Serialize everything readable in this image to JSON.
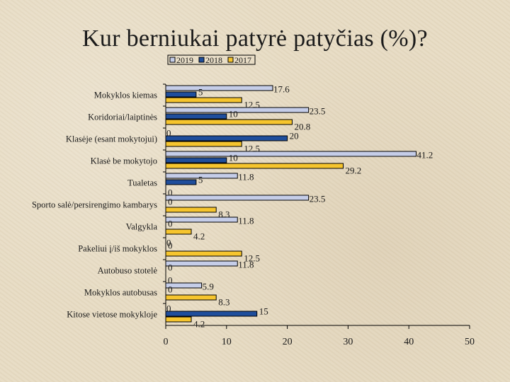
{
  "title": "Kur berniukai patyrė patyčias (%)?",
  "chart_data": {
    "type": "bar",
    "orientation": "horizontal",
    "title": "Kur berniukai patyrė patyčias (%)?",
    "xlabel": "",
    "ylabel": "",
    "xlim": [
      0,
      50
    ],
    "xticks": [
      0,
      10,
      20,
      30,
      40,
      50
    ],
    "legend_position": "top-center",
    "grid": false,
    "categories": [
      "Mokyklos kiemas",
      "Koridoriai/laiptinės",
      "Klasėje (esant mokytojui)",
      "Klasė be mokytojo",
      "Tualetas",
      "Sporto salė/persirengimo kambarys",
      "Valgykla",
      "Pakeliui į/iš mokyklos",
      "Autobuso stotelė",
      "Mokyklos autobusas",
      "Kitose vietose mokykloje"
    ],
    "series": [
      {
        "name": "2019",
        "color": "#c5cde8",
        "values": [
          17.6,
          23.5,
          0,
          41.2,
          11.8,
          23.5,
          11.8,
          0,
          11.8,
          5.9,
          0
        ]
      },
      {
        "name": "2018",
        "color": "#1f4e9c",
        "values": [
          5,
          10,
          20,
          10,
          5,
          0,
          0,
          0,
          0,
          0,
          15
        ]
      },
      {
        "name": "2017",
        "color": "#f6c52e",
        "values": [
          12.5,
          20.8,
          12.5,
          29.2,
          0,
          8.3,
          4.2,
          12.5,
          0,
          8.3,
          4.2
        ]
      }
    ],
    "value_labels": [
      [
        "17.6",
        "5",
        "12.5"
      ],
      [
        "23.5",
        "10",
        "20.8"
      ],
      [
        "0",
        "20",
        "12.5"
      ],
      [
        "41.2",
        "10",
        "29.2"
      ],
      [
        "11.8",
        "5",
        "0"
      ],
      [
        "23.5",
        "0",
        "8.3"
      ],
      [
        "11.8",
        "0",
        "4.2"
      ],
      [
        "0",
        "0",
        "12.5"
      ],
      [
        "11.8",
        "0",
        "0"
      ],
      [
        "5.9",
        "0",
        "8.3"
      ],
      [
        "0",
        "15",
        "4.2"
      ]
    ]
  }
}
